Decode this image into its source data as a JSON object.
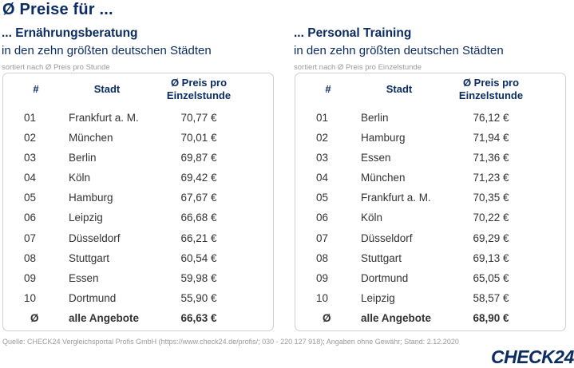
{
  "title": "Ø Preise für ...",
  "left": {
    "title": "... Ernährungsberatung",
    "subtitle": "in den zehn größten deutschen Städten",
    "note": "sortiert nach Ø Preis pro Stunde",
    "headers": {
      "num": "#",
      "city": "Stadt",
      "price_line1": "Ø Preis pro",
      "price_line2": "Einzelstunde"
    },
    "rows": [
      {
        "num": "01",
        "city": "Frankfurt a. M.",
        "price": "70,77 €"
      },
      {
        "num": "02",
        "city": "München",
        "price": "70,01 €"
      },
      {
        "num": "03",
        "city": "Berlin",
        "price": "69,87 €"
      },
      {
        "num": "04",
        "city": "Köln",
        "price": "69,42 €"
      },
      {
        "num": "05",
        "city": "Hamburg",
        "price": "67,67 €"
      },
      {
        "num": "06",
        "city": "Leipzig",
        "price": "66,68 €"
      },
      {
        "num": "07",
        "city": "Düsseldorf",
        "price": "66,21 €"
      },
      {
        "num": "08",
        "city": "Stuttgart",
        "price": "60,54 €"
      },
      {
        "num": "09",
        "city": "Essen",
        "price": "59,98 €"
      },
      {
        "num": "10",
        "city": "Dortmund",
        "price": "55,90 €"
      }
    ],
    "average": {
      "num": "Ø",
      "city": "alle Angebote",
      "price": "66,63 €"
    }
  },
  "right": {
    "title": "... Personal Training",
    "subtitle": "in den zehn größten deutschen Städten",
    "note": "sortiert nach Ø Preis pro Einzelstunde",
    "headers": {
      "num": "#",
      "city": "Stadt",
      "price_line1": "Ø Preis pro",
      "price_line2": "Einzelstunde"
    },
    "rows": [
      {
        "num": "01",
        "city": "Berlin",
        "price": "76,12 €"
      },
      {
        "num": "02",
        "city": "Hamburg",
        "price": "71,94 €"
      },
      {
        "num": "03",
        "city": "Essen",
        "price": "71,36 €"
      },
      {
        "num": "04",
        "city": "München",
        "price": "71,23 €"
      },
      {
        "num": "05",
        "city": "Frankfurt a. M.",
        "price": "70,35 €"
      },
      {
        "num": "06",
        "city": "Köln",
        "price": "70,22 €"
      },
      {
        "num": "07",
        "city": "Düsseldorf",
        "price": "69,29 €"
      },
      {
        "num": "08",
        "city": "Stuttgart",
        "price": "69,13 €"
      },
      {
        "num": "09",
        "city": "Dortmund",
        "price": "65,05 €"
      },
      {
        "num": "10",
        "city": "Leipzig",
        "price": "58,57 €"
      }
    ],
    "average": {
      "num": "Ø",
      "city": "alle Angebote",
      "price": "68,90 €"
    }
  },
  "source": "Quelle: CHECK24 Vergleichsportal Profis GmbH (https://www.check24.de/profis/;  030 - 220 127 918); Angaben ohne Gewähr; Stand: 2.12.2020",
  "logo": "CHECK24",
  "colors": {
    "navy": "#0c2d63",
    "muted": "#9a9a9a",
    "text": "#333333",
    "border": "#d0d0d0"
  }
}
